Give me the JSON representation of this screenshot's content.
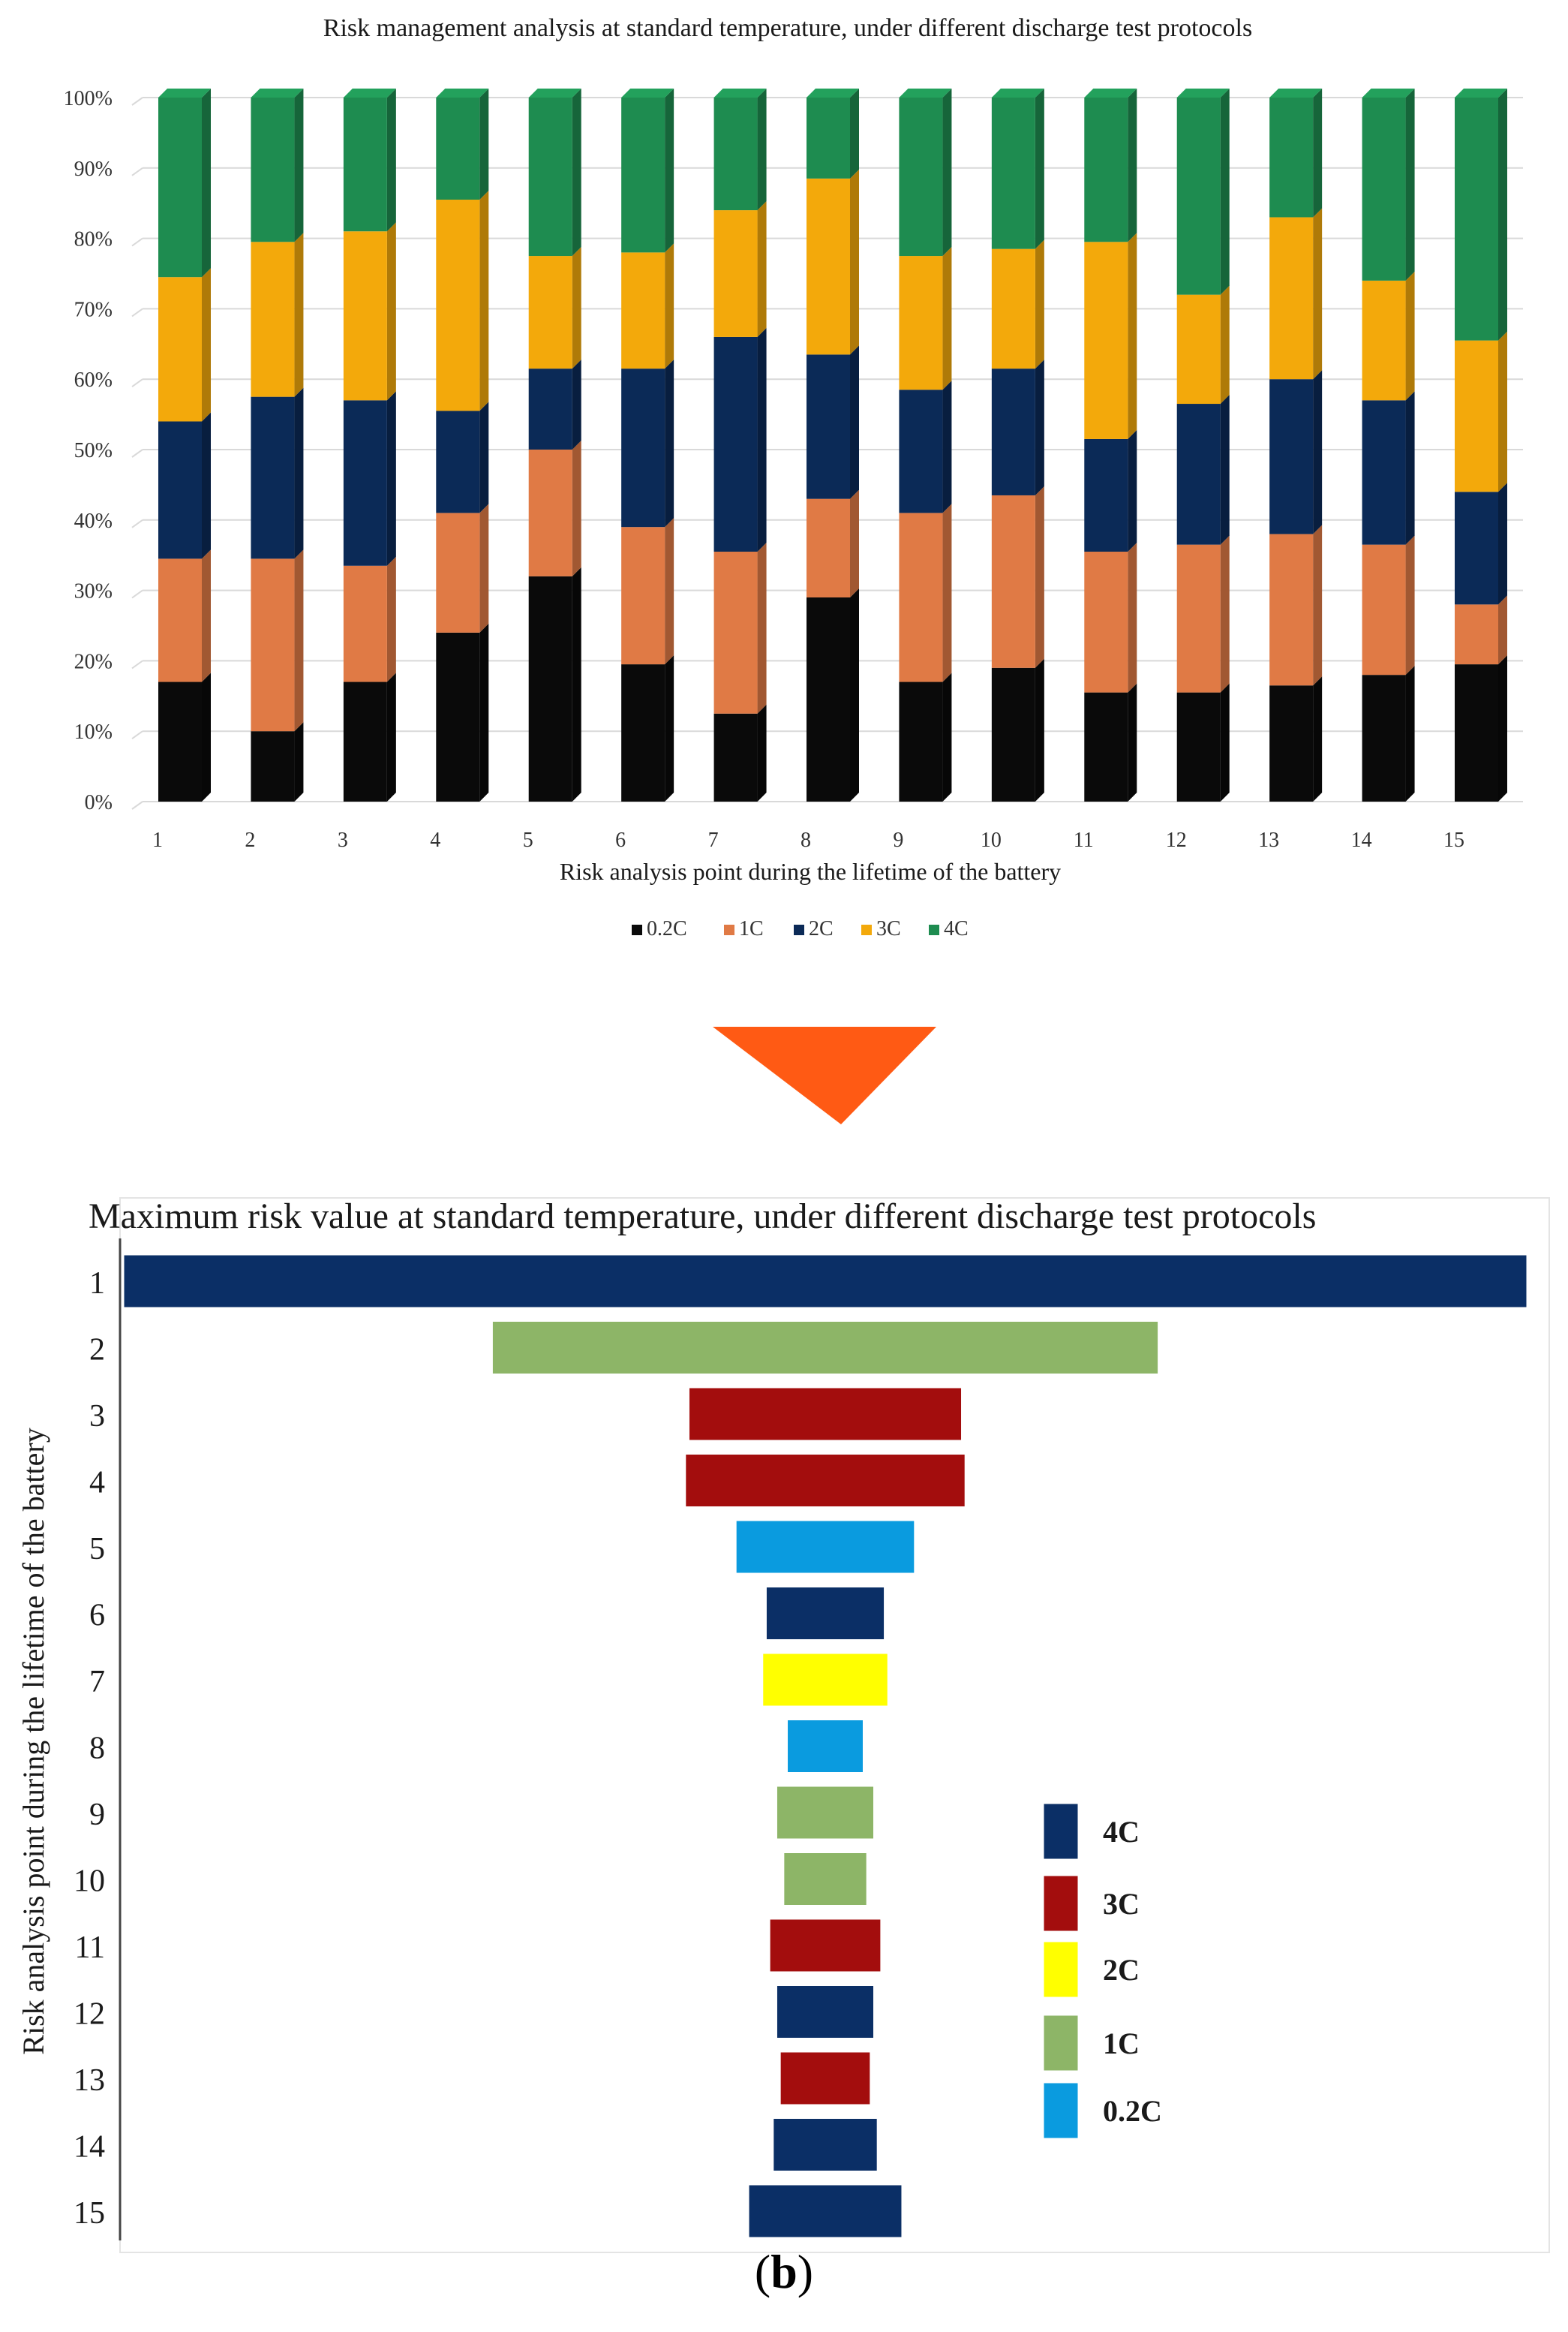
{
  "figure": {
    "caption_prefix": "(",
    "caption_letter": "b",
    "caption_suffix": ")",
    "arrow_color": "#ff5a14",
    "arrow_icon": "down-triangle-arrow"
  },
  "chart_data": [
    {
      "type": "bar",
      "stacked": true,
      "title": "Risk management analysis at standard temperature, under different discharge test protocols",
      "xlabel": "Risk analysis point during the lifetime of the battery",
      "ylabel": "",
      "categories": [
        "1",
        "2",
        "3",
        "4",
        "5",
        "6",
        "7",
        "8",
        "9",
        "10",
        "11",
        "12",
        "13",
        "14",
        "15"
      ],
      "ylim": [
        0,
        100
      ],
      "yticks": [
        "0%",
        "10%",
        "20%",
        "30%",
        "40%",
        "50%",
        "60%",
        "70%",
        "80%",
        "90%",
        "100%"
      ],
      "grid": true,
      "legend_position": "bottom",
      "series": [
        {
          "name": "0.2C",
          "legend_label": "0.2C",
          "color": "#0a0a0a",
          "values": [
            17,
            10,
            17,
            24,
            32,
            19.5,
            12.5,
            29,
            17,
            19,
            15.5,
            15.5,
            16.5,
            18,
            19.5
          ]
        },
        {
          "name": "1C",
          "legend_label": "1C",
          "color": "#e07a45",
          "values": [
            17.5,
            24.5,
            16.5,
            17,
            18,
            19.5,
            23,
            14,
            24,
            24.5,
            20,
            21,
            21.5,
            18.5,
            8.5
          ]
        },
        {
          "name": "2C",
          "legend_label": "2C",
          "color": "#0b2a57",
          "values": [
            19.5,
            23,
            23.5,
            14.5,
            11.5,
            22.5,
            30.5,
            20.5,
            17.5,
            18,
            16,
            20,
            22,
            20.5,
            16
          ]
        },
        {
          "name": "3C",
          "legend_label": "3C",
          "color": "#f3a90b",
          "values": [
            20.5,
            22,
            24,
            30,
            16,
            16.5,
            18,
            25,
            19,
            17,
            28,
            15.5,
            23,
            17,
            21.5
          ]
        },
        {
          "name": "4C",
          "legend_label": "4C",
          "color": "#1e8c50",
          "values": [
            25.5,
            20.5,
            19,
            14.5,
            22.5,
            22,
            16,
            11.5,
            22.5,
            21.5,
            20.5,
            28,
            17,
            26,
            34.5
          ]
        }
      ]
    },
    {
      "type": "bar",
      "orientation": "horizontal",
      "centered": true,
      "title": "Maximum risk value at standard temperature, under different discharge test protocols",
      "ylabel": "Risk analysis point during the lifetime of the battery",
      "xlabel": "",
      "categories": [
        "1",
        "2",
        "3",
        "4",
        "5",
        "6",
        "7",
        "8",
        "9",
        "10",
        "11",
        "12",
        "13",
        "14",
        "15"
      ],
      "values": [
        100,
        47.5,
        19.5,
        20,
        12.8,
        8.5,
        9,
        5.5,
        7,
        6,
        8,
        7,
        6.5,
        7.5,
        11
      ],
      "bar_protocols": [
        "4C",
        "1C",
        "3C",
        "3C",
        "0.2C",
        "4C",
        "2C",
        "0.2C",
        "1C",
        "1C",
        "3C",
        "4C",
        "3C",
        "4C",
        "4C"
      ],
      "xlim": [
        0,
        100
      ],
      "legend_position": "right",
      "legend": [
        {
          "name": "4C",
          "label": "4C",
          "color": "#0b2f66"
        },
        {
          "name": "3C",
          "label": "3C",
          "color": "#a30d0d"
        },
        {
          "name": "2C",
          "label": "2C",
          "color": "#ffff00"
        },
        {
          "name": "1C",
          "label": "1C",
          "color": "#8db567"
        },
        {
          "name": "0.2C",
          "label": "0.2C",
          "color": "#0a9bdf"
        }
      ]
    }
  ]
}
